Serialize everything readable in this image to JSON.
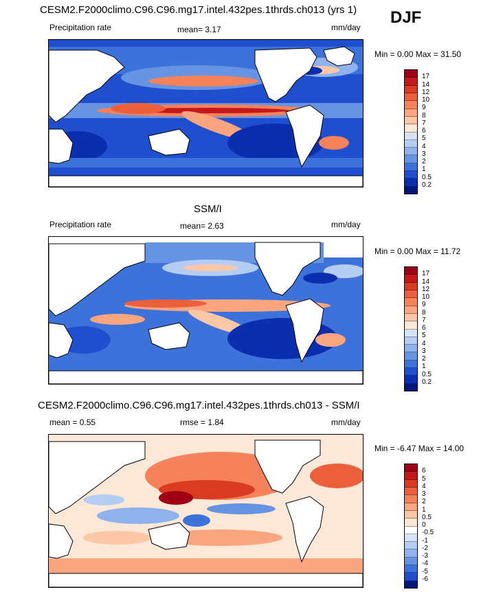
{
  "season": "DJF",
  "panels": [
    {
      "id": "model",
      "title": "CESM2.F2000climo.C96.C96.mg17.intel.432pes.1thrds.ch013 (yrs 1)",
      "left_label": "Precipitation rate",
      "stat1": "mean=  3.17",
      "stat2": "",
      "units": "mm/day",
      "minmax": "Min =   0.00 Max =  31.50",
      "levels": [
        "17",
        "14",
        "12",
        "10",
        "9",
        "8",
        "7",
        "6",
        "5",
        "4",
        "3",
        "2",
        "1",
        "0.5",
        "0.2"
      ],
      "colors": [
        "#9e0016",
        "#c4181c",
        "#db3b20",
        "#eb5f3a",
        "#f5825a",
        "#f9a57f",
        "#fcc7a7",
        "#fde7d7",
        "#d7e3f7",
        "#b5cdf2",
        "#8fb2ec",
        "#6694e3",
        "#3d72da",
        "#1f4fcf",
        "#0a2eae",
        "#00167a"
      ]
    },
    {
      "id": "obs",
      "title": "SSM/I",
      "left_label": "Precipitation rate",
      "stat1": "mean=  2.63",
      "stat2": "",
      "units": "mm/day",
      "minmax": "Min =   0.00 Max =  11.72",
      "levels": [
        "17",
        "14",
        "12",
        "10",
        "9",
        "8",
        "7",
        "6",
        "5",
        "4",
        "3",
        "2",
        "1",
        "0.5",
        "0.2"
      ],
      "colors": [
        "#9e0016",
        "#c4181c",
        "#db3b20",
        "#eb5f3a",
        "#f5825a",
        "#f9a57f",
        "#fcc7a7",
        "#fde7d7",
        "#d7e3f7",
        "#b5cdf2",
        "#8fb2ec",
        "#6694e3",
        "#3d72da",
        "#1f4fcf",
        "#0a2eae",
        "#00167a"
      ]
    },
    {
      "id": "diff",
      "title": "CESM2.F2000climo.C96.C96.mg17.intel.432pes.1thrds.ch013 - SSM/I",
      "left_label": "mean =   0.55",
      "stat1": "rmse =   1.84",
      "stat2": "",
      "units": "mm/day",
      "minmax": "Min =  -6.47 Max =  14.00",
      "levels": [
        "6",
        "5",
        "4",
        "3",
        "2",
        "1",
        "0.5",
        "0",
        "-0.5",
        "-1",
        "-2",
        "-3",
        "-4",
        "-5",
        "-6"
      ],
      "colors": [
        "#9e0016",
        "#c4181c",
        "#db3b20",
        "#eb5f3a",
        "#f5825a",
        "#f9a57f",
        "#fcc7a7",
        "#fde7d7",
        "#ffffff",
        "#d7e3f7",
        "#b5cdf2",
        "#8fb2ec",
        "#6694e3",
        "#3d72da",
        "#1f4fcf",
        "#00167a"
      ]
    }
  ],
  "colors": {
    "land": "#ffffff",
    "coast": "#000000",
    "ocean_low": "#3d72da",
    "ocean_dry": "#0a2eae",
    "wet": "#db3b20"
  }
}
